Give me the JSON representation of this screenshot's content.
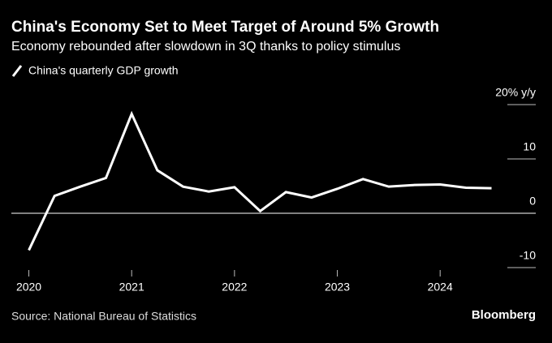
{
  "chart_data": {
    "type": "line",
    "title": "China's Economy Set to Meet Target of Around 5% Growth",
    "subtitle": "Economy rebounded after slowdown in 3Q thanks to policy stimulus",
    "source": "Source: National Bureau of Statistics",
    "brand": "Bloomberg",
    "x": [
      2020,
      2020.25,
      2020.5,
      2020.75,
      2021,
      2021.25,
      2021.5,
      2021.75,
      2022,
      2022.25,
      2022.5,
      2022.75,
      2023,
      2023.25,
      2023.5,
      2023.75,
      2024,
      2024.25,
      2024.5
    ],
    "series": [
      {
        "name": "China's quarterly GDP growth",
        "color": "#ffffff",
        "values": [
          -6.8,
          3.2,
          4.9,
          6.5,
          18.3,
          7.9,
          4.9,
          4.0,
          4.8,
          0.4,
          3.9,
          2.9,
          4.5,
          6.3,
          4.9,
          5.2,
          5.3,
          4.7,
          4.6
        ]
      }
    ],
    "xlim": [
      2019.83,
      2024.93
    ],
    "xticks": [
      2020,
      2021,
      2022,
      2023,
      2024
    ],
    "ylim": [
      -11,
      21
    ],
    "yticks": [
      {
        "value": 20,
        "label": "20% y/y"
      },
      10,
      0,
      -10
    ]
  }
}
